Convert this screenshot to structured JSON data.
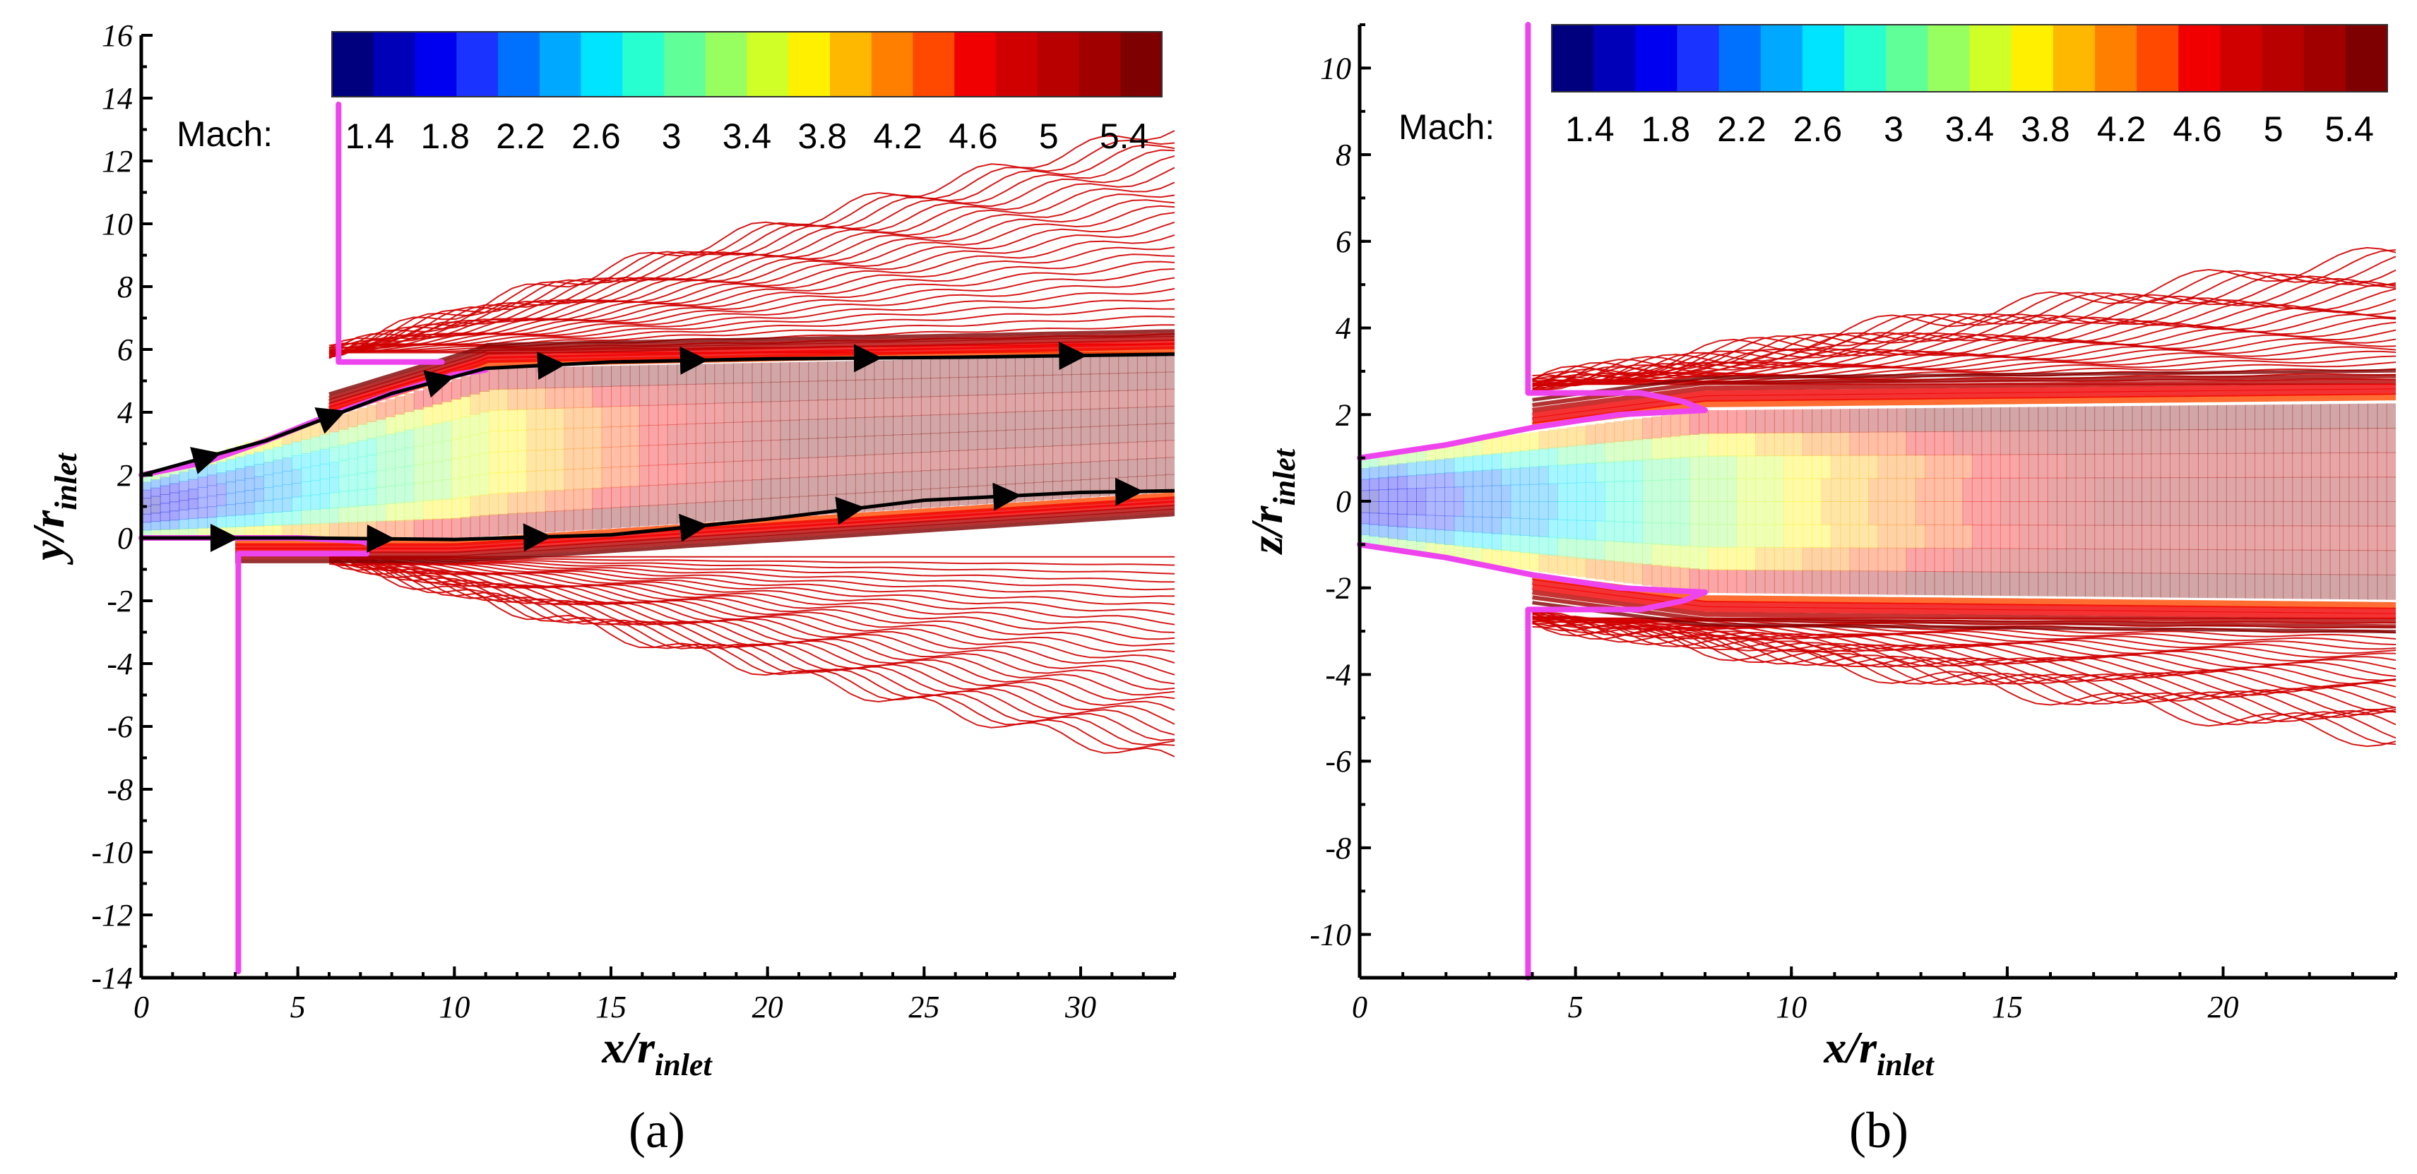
{
  "chart_data": [
    {
      "type": "contour",
      "panel": "(a)",
      "xlabel": "x/r",
      "xlabel_sub": "inlet",
      "ylabel": "y/r",
      "ylabel_sub": "inlet",
      "xlim": [
        0,
        33
      ],
      "ylim": [
        -14,
        16
      ],
      "xticks": [
        0,
        5,
        10,
        15,
        20,
        25,
        30
      ],
      "yticks": [
        -14,
        -12,
        -10,
        -8,
        -6,
        -4,
        -2,
        0,
        2,
        4,
        6,
        8,
        10,
        12,
        14,
        16
      ],
      "colorbar_title": "Mach:",
      "colorbar_labels": [
        "1.4",
        "1.8",
        "2.2",
        "2.6",
        "3",
        "3.4",
        "3.8",
        "4.2",
        "4.6",
        "5",
        "5.4"
      ],
      "colorbar_range": [
        1.2,
        5.6
      ],
      "nozzle_wall_upper": [
        [
          6.3,
          13.8
        ],
        [
          6.3,
          5.6
        ],
        [
          9.6,
          5.6
        ]
      ],
      "nozzle_wall_lower": [
        [
          3.1,
          -13.8
        ],
        [
          3.1,
          -0.5
        ],
        [
          7.2,
          -0.5
        ]
      ],
      "nozzle_contour_upper": [
        [
          0,
          2.0
        ],
        [
          2,
          2.4
        ],
        [
          4,
          3.1
        ],
        [
          6,
          3.9
        ],
        [
          8,
          4.6
        ],
        [
          10,
          5.2
        ],
        [
          11,
          5.35
        ]
      ],
      "nozzle_contour_lower": [
        [
          0,
          0
        ],
        [
          3,
          0
        ],
        [
          5,
          0
        ],
        [
          7,
          -0.1
        ],
        [
          7.5,
          -0.25
        ]
      ],
      "streamlines": [
        {
          "points": [
            [
              0,
              2.0
            ],
            [
              4,
              3.1
            ],
            [
              8,
              4.6
            ],
            [
              11,
              5.4
            ],
            [
              15,
              5.6
            ],
            [
              20,
              5.7
            ],
            [
              26,
              5.75
            ],
            [
              33,
              5.85
            ]
          ]
        },
        {
          "points": [
            [
              0,
              0
            ],
            [
              5,
              0
            ],
            [
              10,
              -0.05
            ],
            [
              15,
              0.1
            ],
            [
              20,
              0.6
            ],
            [
              25,
              1.2
            ],
            [
              30,
              1.45
            ],
            [
              33,
              1.5
            ]
          ]
        }
      ]
    },
    {
      "type": "contour",
      "panel": "(b)",
      "xlabel": "x/r",
      "xlabel_sub": "inlet",
      "ylabel": "z/r",
      "ylabel_sub": "inlet",
      "xlim": [
        0,
        24
      ],
      "ylim": [
        -11,
        11
      ],
      "xticks": [
        0,
        5,
        10,
        15,
        20
      ],
      "yticks": [
        -10,
        -8,
        -6,
        -4,
        -2,
        0,
        2,
        4,
        6,
        8,
        10
      ],
      "colorbar_title": "Mach:",
      "colorbar_labels": [
        "1.4",
        "1.8",
        "2.2",
        "2.6",
        "3",
        "3.4",
        "3.8",
        "4.2",
        "4.6",
        "5",
        "5.4"
      ],
      "colorbar_range": [
        1.2,
        5.6
      ],
      "nozzle_wall_upper": [
        [
          3.9,
          11
        ],
        [
          3.9,
          2.5
        ],
        [
          6.5,
          2.5
        ],
        [
          7.5,
          2.3
        ],
        [
          8.0,
          2.1
        ]
      ],
      "nozzle_wall_lower": [
        [
          3.9,
          -11
        ],
        [
          3.9,
          -2.5
        ],
        [
          6.5,
          -2.5
        ],
        [
          7.5,
          -2.3
        ],
        [
          8.0,
          -2.1
        ]
      ],
      "nozzle_contour_upper": [
        [
          0,
          1.0
        ],
        [
          2,
          1.3
        ],
        [
          4,
          1.7
        ],
        [
          6,
          2.0
        ],
        [
          8,
          2.1
        ]
      ],
      "nozzle_contour_lower": [
        [
          0,
          -1.0
        ],
        [
          2,
          -1.3
        ],
        [
          4,
          -1.7
        ],
        [
          6,
          -2.0
        ],
        [
          8,
          -2.1
        ]
      ]
    }
  ],
  "colors": {
    "magenta_wall": "#ee44ee",
    "colormap": [
      "#00007f",
      "#0000b8",
      "#0000f0",
      "#1a33ff",
      "#0070ff",
      "#00a8ff",
      "#00e4ff",
      "#28ffd0",
      "#60ff98",
      "#98ff60",
      "#d0ff28",
      "#fff000",
      "#ffb800",
      "#ff8000",
      "#ff4800",
      "#f00000",
      "#d00000",
      "#b80000",
      "#a00000",
      "#7f0000"
    ]
  }
}
